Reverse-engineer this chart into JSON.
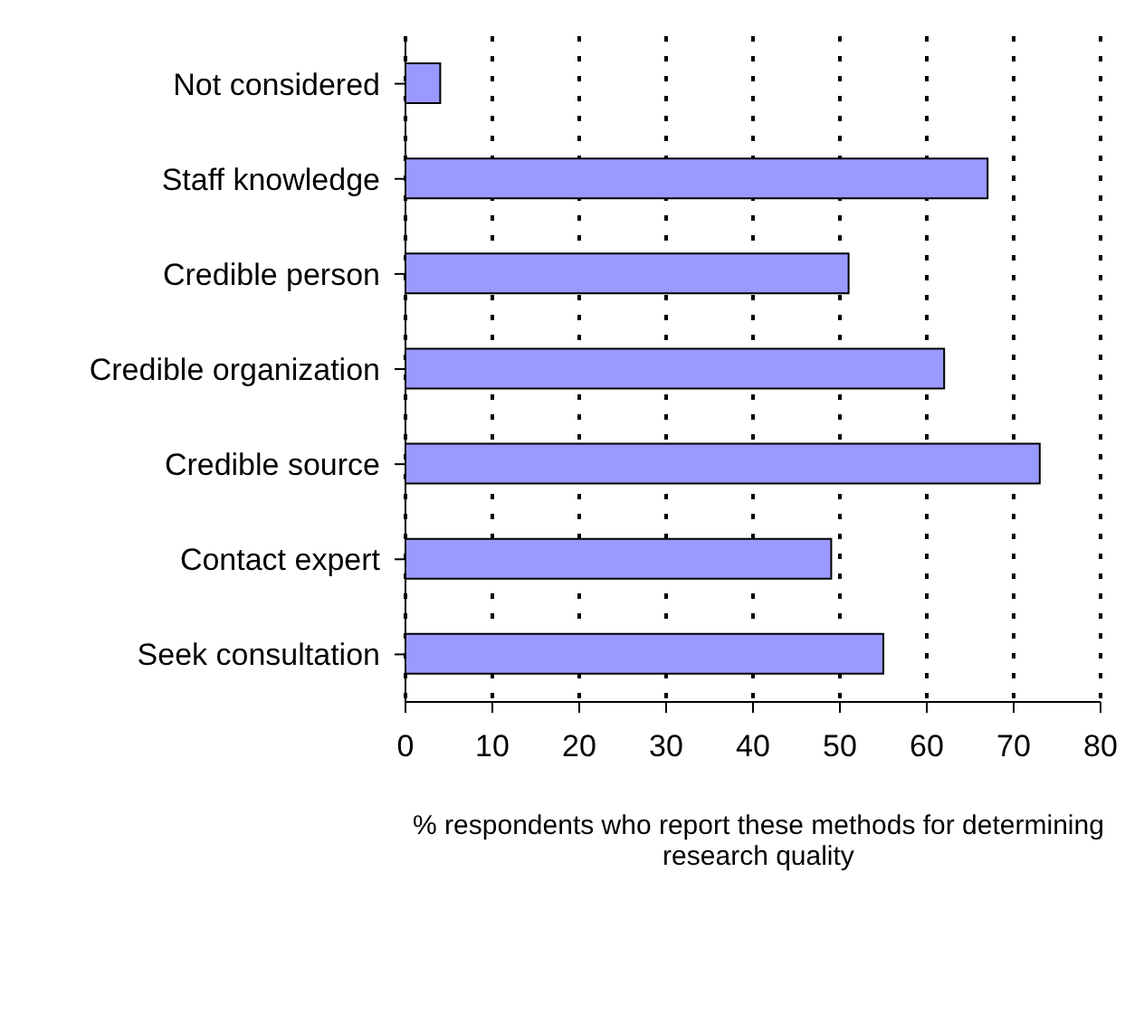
{
  "chart_data": {
    "type": "bar",
    "orientation": "horizontal",
    "xlabel": "% respondents who report these methods for determining research quality",
    "categories": [
      "Not considered",
      "Staff knowledge",
      "Credible person",
      "Credible organization",
      "Credible source",
      "Contact expert",
      "Seek consultation"
    ],
    "values": [
      4,
      67,
      51,
      62,
      73,
      49,
      55
    ],
    "color": "#9999ff",
    "xlim": [
      0,
      80
    ],
    "xticks": [
      0,
      10,
      20,
      30,
      40,
      50,
      60,
      70,
      80
    ],
    "grid": "x"
  }
}
